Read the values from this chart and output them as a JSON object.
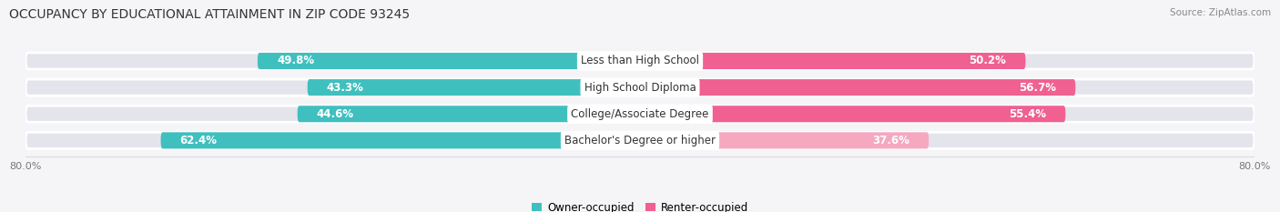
{
  "title": "OCCUPANCY BY EDUCATIONAL ATTAINMENT IN ZIP CODE 93245",
  "source": "Source: ZipAtlas.com",
  "categories": [
    "Less than High School",
    "High School Diploma",
    "College/Associate Degree",
    "Bachelor's Degree or higher"
  ],
  "owner_values": [
    49.8,
    43.3,
    44.6,
    62.4
  ],
  "renter_values": [
    50.2,
    56.7,
    55.4,
    37.6
  ],
  "owner_color": "#40bfbf",
  "renter_color": "#f06090",
  "renter_light_color": "#f5a8c0",
  "owner_label": "Owner-occupied",
  "renter_label": "Renter-occupied",
  "background_color": "#f5f5f8",
  "bar_background": "#e4e4ec",
  "bar_height": 0.62,
  "bar_gap": 0.08,
  "title_fontsize": 10,
  "source_fontsize": 7.5,
  "value_fontsize": 8.5,
  "label_fontsize": 8.5,
  "tick_fontsize": 8,
  "owner_value_inside_threshold": 10,
  "total_width": 80.0
}
